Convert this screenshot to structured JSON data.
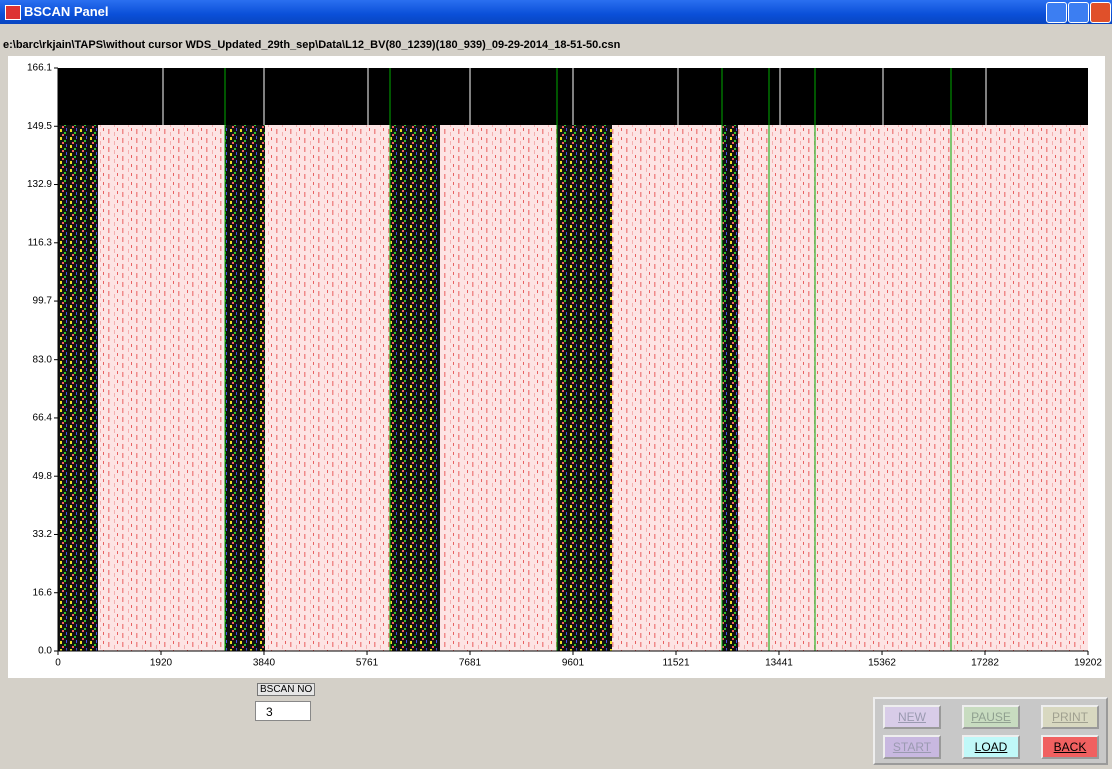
{
  "window": {
    "title": "BSCAN Panel"
  },
  "file_path": "e:\\barc\\rkjain\\TAPS\\without cursor WDS_Updated_29th_sep\\Data\\L12_BV(80_1239)(180_939)_09-29-2014_18-51-50.csn",
  "chart_data": {
    "type": "bscan",
    "xlim": [
      0,
      19202
    ],
    "xticks": [
      0,
      1920,
      3840,
      5761,
      7681,
      9601,
      11521,
      13441,
      15362,
      17282,
      19202
    ],
    "ylim": [
      0,
      166.1
    ],
    "yticks": [
      {
        "value": 0,
        "label": "0.0"
      },
      16.6,
      33.2,
      49.8,
      66.4,
      {
        "value": 83,
        "label": "83.0"
      },
      99.7,
      116.3,
      132.9,
      149.5,
      166.1
    ]
  },
  "controls": {
    "bscan_no_label": "BSCAN NO",
    "bscan_no": "3",
    "buttons": [
      {
        "label": "NEW"
      },
      {
        "label": "PAUSE"
      },
      {
        "label": "PRINT"
      },
      {
        "label": "START"
      },
      {
        "label": "LOAD"
      },
      {
        "label": "BACK"
      }
    ]
  }
}
